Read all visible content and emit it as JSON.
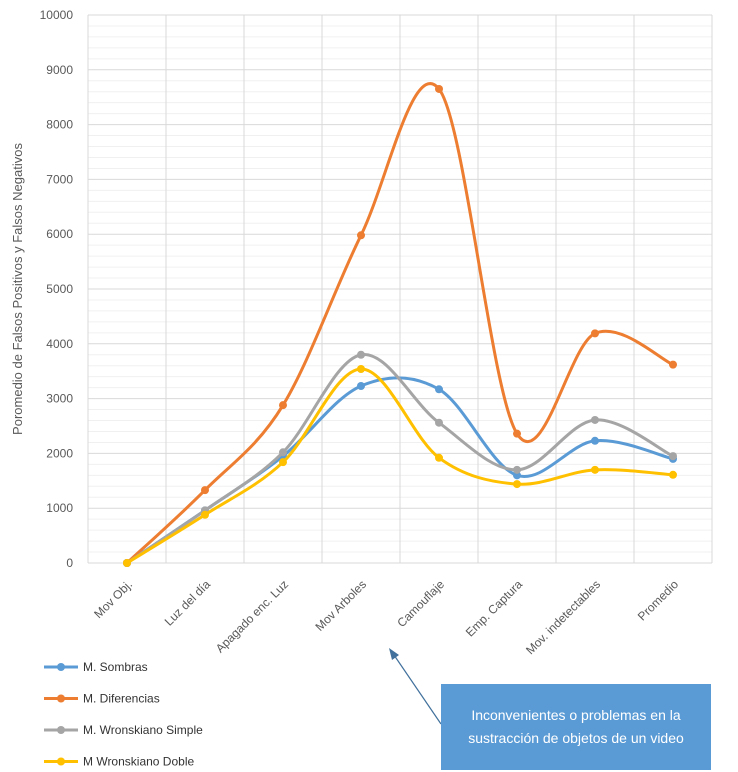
{
  "chart_data": {
    "type": "line",
    "smooth": true,
    "categories": [
      "Mov Obj.",
      "Luz del día",
      "Apagado enc. Luz",
      "Mov Arboles",
      "Camouflaje",
      "Emp. Captura",
      "Mov. indetectables",
      "Promedio"
    ],
    "series": [
      {
        "name": "M. Sombras",
        "color": "#5b9bd5",
        "values": [
          0,
          960,
          1950,
          3230,
          3170,
          1600,
          2230,
          1900
        ]
      },
      {
        "name": "M. Diferencias",
        "color": "#ed7d31",
        "values": [
          0,
          1330,
          2880,
          5980,
          8650,
          2360,
          4190,
          3620
        ]
      },
      {
        "name": "M. Wronskiano Simple",
        "color": "#a5a5a5",
        "values": [
          0,
          960,
          2020,
          3800,
          2560,
          1700,
          2610,
          1950
        ]
      },
      {
        "name": "M Wronskiano Doble",
        "color": "#ffc000",
        "values": [
          0,
          880,
          1840,
          3540,
          1920,
          1440,
          1700,
          1610
        ]
      }
    ],
    "ylabel": "Poromedio de Falsos Positivos y Falsos Negativos",
    "xlabel": "",
    "ylim": [
      0,
      10000
    ],
    "ytick_step": 1000,
    "grid": true,
    "legend_position": "bottom-left"
  },
  "annotation": {
    "text": "Inconvenientes o problemas en la sustracción de objetos de un video",
    "color": "#5b9bd5"
  }
}
